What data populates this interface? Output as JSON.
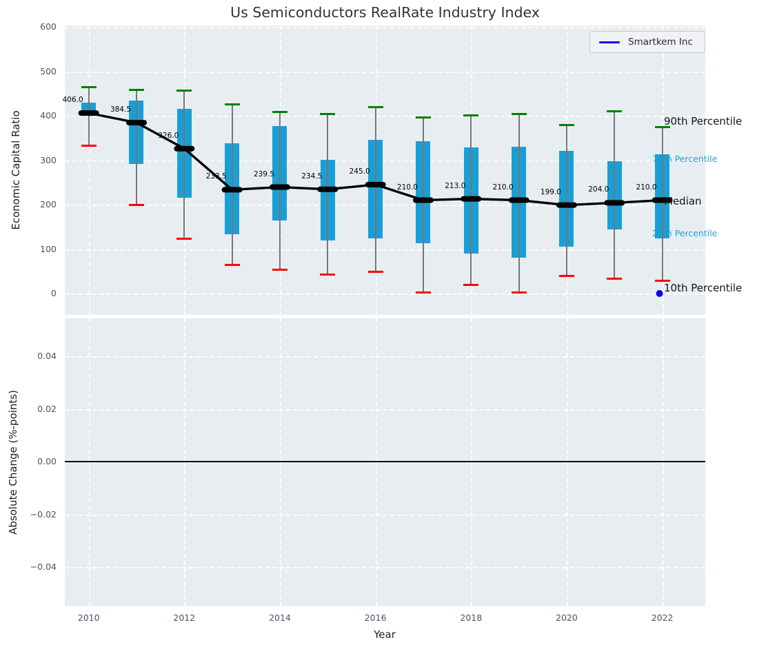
{
  "title": "Us Semiconductors RealRate Industry Index",
  "legend": {
    "label": "Smartkem Inc",
    "line_color": "#0000ee"
  },
  "right_labels": {
    "p90": "90th Percentile",
    "p75": "75th Percentile",
    "median": "Median",
    "p25": "25th Percentile",
    "p10": "10th Percentile"
  },
  "colors": {
    "box": "#1a9ed6",
    "p90_cap": "#008000",
    "p10_cap": "#fe0000",
    "whisker": "#767676",
    "median_line": "#000000",
    "smartkem_point": "#0000ee",
    "panel_background": "#e8edf1",
    "grid": "#ffffff",
    "tick_text": "#44546a",
    "cyan_label": "#1da4dc"
  },
  "chart_data": [
    {
      "type": "box-whisker-with-median-line",
      "title": "Us Semiconductors RealRate Industry Index",
      "ylabel": "Economic Capital Ratio",
      "xlabel": "Year",
      "x": [
        2010,
        2011,
        2012,
        2013,
        2014,
        2015,
        2016,
        2017,
        2018,
        2019,
        2020,
        2021,
        2022
      ],
      "series": [
        {
          "name": "90th Percentile",
          "values": [
            464,
            458,
            457,
            426,
            408,
            404,
            420,
            396,
            401,
            404,
            379,
            410,
            375
          ]
        },
        {
          "name": "75th Percentile",
          "values": [
            430,
            434,
            416,
            338,
            377,
            301,
            345,
            342,
            328,
            331,
            321,
            298,
            313
          ]
        },
        {
          "name": "Median",
          "values": [
            406.0,
            384.5,
            326.0,
            233.5,
            239.5,
            234.5,
            245.0,
            210.0,
            213.0,
            210.0,
            199.0,
            204.0,
            210.0
          ]
        },
        {
          "name": "25th Percentile",
          "values": [
            400,
            291,
            216,
            133,
            164,
            120,
            124,
            113,
            90,
            81,
            106,
            144,
            124
          ]
        },
        {
          "name": "10th Percentile",
          "values": [
            333,
            200,
            124,
            64,
            54,
            42,
            49,
            2,
            20,
            3,
            40,
            34,
            28
          ]
        }
      ],
      "median_labels": [
        "406.0",
        "384.5",
        "326.0",
        "233.5",
        "239.5",
        "234.5",
        "245.0",
        "210.0",
        "213.0",
        "210.0",
        "199.0",
        "204.0",
        "210.0"
      ],
      "smartkem_point": {
        "x": 2022,
        "value": 0
      },
      "yticks": [
        0,
        100,
        200,
        300,
        400,
        500,
        600
      ],
      "ytick_labels": [
        "0",
        "100",
        "200",
        "300",
        "400",
        "500",
        "600"
      ],
      "xticks": [
        2010,
        2012,
        2014,
        2016,
        2018,
        2020,
        2022
      ],
      "xtick_labels": [
        "2010",
        "2012",
        "2014",
        "2016",
        "2018",
        "2020",
        "2022"
      ],
      "ylim": [
        -48,
        603
      ],
      "xlim": [
        2009.5,
        2022.9
      ],
      "grid": true,
      "legend_position": "upper right"
    },
    {
      "type": "line",
      "ylabel": "Absolute Change (%-points)",
      "yticks": [
        0.04,
        0.02,
        0.0,
        -0.02,
        -0.04
      ],
      "ytick_labels": [
        "0.04",
        "0.02",
        "0.00",
        "−0.02",
        "−0.04"
      ],
      "ylim": [
        -0.055,
        0.055
      ],
      "zero_line": 0.0,
      "series": [],
      "grid": true
    }
  ]
}
